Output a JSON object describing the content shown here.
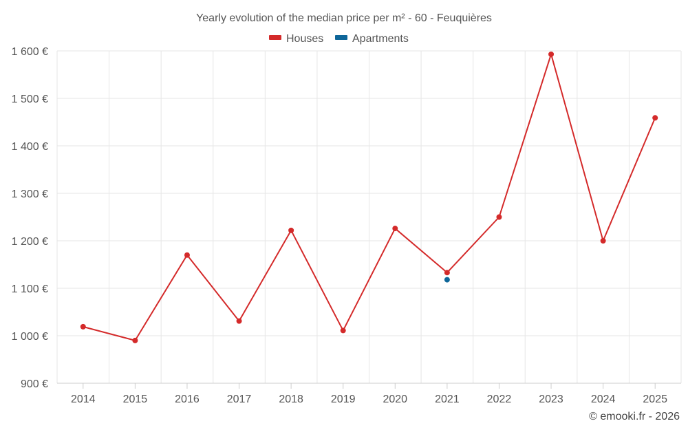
{
  "chart_data": {
    "type": "line",
    "title": "Yearly evolution of the median price per m² - 60 - Feuquières",
    "categories": [
      "2014",
      "2015",
      "2016",
      "2017",
      "2018",
      "2019",
      "2020",
      "2021",
      "2022",
      "2023",
      "2024",
      "2025"
    ],
    "series": [
      {
        "name": "Houses",
        "color": "#d42a2a",
        "values": [
          1019,
          990,
          1170,
          1031,
          1222,
          1011,
          1226,
          1133,
          1250,
          1593,
          1200,
          1459
        ]
      },
      {
        "name": "Apartments",
        "color": "#0e6699",
        "values": [
          null,
          null,
          null,
          null,
          null,
          null,
          null,
          1118,
          null,
          null,
          null,
          null
        ]
      }
    ],
    "y_ticks": [
      "900 €",
      "1 000 €",
      "1 100 €",
      "1 200 €",
      "1 300 €",
      "1 400 €",
      "1 500 €",
      "1 600 €"
    ],
    "ylim": [
      900,
      1600
    ],
    "xlabel": "",
    "ylabel": "",
    "legend": "top-center",
    "grid": true
  },
  "credit": "© emooki.fr - 2026"
}
